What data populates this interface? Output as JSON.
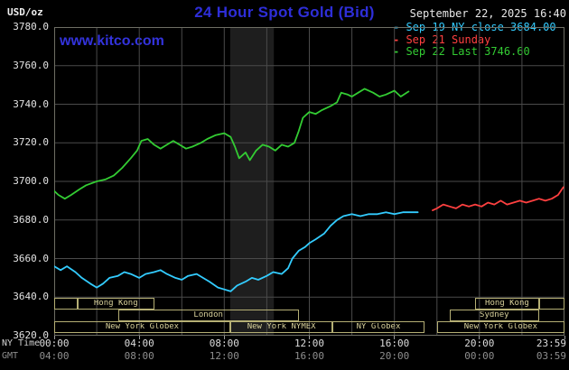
{
  "header": {
    "units_label": "USD/oz",
    "title": "24 Hour Spot Gold (Bid)",
    "datetime": "September 22, 2025 16:40",
    "watermark": "www.kitco.com"
  },
  "axis": {
    "ny_time_label": "NY Time",
    "gmt_label": "GMT"
  },
  "legend": {
    "position": "top-right",
    "items": [
      {
        "id": "sep19",
        "label": "Sep 19 NY close 3684.00",
        "color": "#33ccff"
      },
      {
        "id": "sep21",
        "label": "Sep 21 Sunday",
        "color": "#ff4040"
      },
      {
        "id": "sep22",
        "label": "Sep 22 Last 3746.60",
        "color": "#33cc33"
      }
    ]
  },
  "colors": {
    "background": "#000000",
    "title_blue": "#2e2ed8",
    "watermark_blue": "#3333dd",
    "date_text": "#e8e8e8",
    "session_box_border": "#b5af74",
    "session_label": "#d8d19b"
  },
  "chart_data": {
    "type": "line",
    "title": "24 Hour Spot Gold (Bid)",
    "xlabel": "Time (NY Time / GMT)",
    "ylabel": "USD/oz",
    "ylim": [
      3620,
      3780
    ],
    "xlim_hours": [
      0,
      24
    ],
    "grid": {
      "on": true,
      "x_step_hours": 2,
      "y_step": 20,
      "color": "#4a4a4a",
      "border_color": "#6e6e64"
    },
    "shaded_band": {
      "start_hour": 8.28,
      "end_hour": 10.33,
      "color": "#1e1e1e"
    },
    "y_ticks": [
      {
        "value": 3780,
        "label": "3780.0"
      },
      {
        "value": 3760,
        "label": "3760.0"
      },
      {
        "value": 3740,
        "label": "3740.0"
      },
      {
        "value": 3720,
        "label": "3720.0"
      },
      {
        "value": 3700,
        "label": "3700.0"
      },
      {
        "value": 3680,
        "label": "3680.0"
      },
      {
        "value": 3660,
        "label": "3660.0"
      },
      {
        "value": 3640,
        "label": "3640.0"
      },
      {
        "value": 3620,
        "label": "3620.0"
      }
    ],
    "x_ticks": [
      {
        "hour": 0,
        "ny": "00:00",
        "gmt": "04:00"
      },
      {
        "hour": 4,
        "ny": "04:00",
        "gmt": "08:00"
      },
      {
        "hour": 8,
        "ny": "08:00",
        "gmt": "12:00"
      },
      {
        "hour": 12,
        "ny": "12:00",
        "gmt": "16:00"
      },
      {
        "hour": 16,
        "ny": "16:00",
        "gmt": "20:00"
      },
      {
        "hour": 20,
        "ny": "20:00",
        "gmt": "00:00"
      },
      {
        "hour": 24,
        "ny": "23:59",
        "gmt": "03:59"
      }
    ],
    "series": [
      {
        "id": "sep19",
        "name": "Sep 19 NY close",
        "color": "#33ccff",
        "close": 3684.0,
        "points": [
          [
            0,
            3656
          ],
          [
            0.3,
            3654
          ],
          [
            0.6,
            3656
          ],
          [
            1,
            3653
          ],
          [
            1.3,
            3650
          ],
          [
            1.7,
            3647
          ],
          [
            2,
            3645
          ],
          [
            2.3,
            3647
          ],
          [
            2.6,
            3650
          ],
          [
            3,
            3651
          ],
          [
            3.3,
            3653
          ],
          [
            3.6,
            3652
          ],
          [
            4,
            3650
          ],
          [
            4.3,
            3652
          ],
          [
            4.7,
            3653
          ],
          [
            5,
            3654
          ],
          [
            5.3,
            3652
          ],
          [
            5.7,
            3650
          ],
          [
            6,
            3649
          ],
          [
            6.3,
            3651
          ],
          [
            6.7,
            3652
          ],
          [
            7,
            3650
          ],
          [
            7.3,
            3648
          ],
          [
            7.7,
            3645
          ],
          [
            8,
            3644
          ],
          [
            8.3,
            3643
          ],
          [
            8.6,
            3646
          ],
          [
            9,
            3648
          ],
          [
            9.3,
            3650
          ],
          [
            9.6,
            3649
          ],
          [
            10,
            3651
          ],
          [
            10.3,
            3653
          ],
          [
            10.7,
            3652
          ],
          [
            11,
            3655
          ],
          [
            11.2,
            3660
          ],
          [
            11.5,
            3664
          ],
          [
            11.8,
            3666
          ],
          [
            12,
            3668
          ],
          [
            12.3,
            3670
          ],
          [
            12.7,
            3673
          ],
          [
            13,
            3677
          ],
          [
            13.3,
            3680
          ],
          [
            13.6,
            3682
          ],
          [
            14,
            3683
          ],
          [
            14.4,
            3682
          ],
          [
            14.8,
            3683
          ],
          [
            15.2,
            3683
          ],
          [
            15.6,
            3684
          ],
          [
            16,
            3683
          ],
          [
            16.4,
            3684
          ],
          [
            16.8,
            3684
          ],
          [
            17.1,
            3684
          ]
        ]
      },
      {
        "id": "sep21",
        "name": "Sep 21 Sunday",
        "color": "#ff4040",
        "points": [
          [
            17.8,
            3685
          ],
          [
            18,
            3686
          ],
          [
            18.3,
            3688
          ],
          [
            18.6,
            3687
          ],
          [
            18.9,
            3686
          ],
          [
            19.2,
            3688
          ],
          [
            19.5,
            3687
          ],
          [
            19.8,
            3688
          ],
          [
            20.1,
            3687
          ],
          [
            20.4,
            3689
          ],
          [
            20.7,
            3688
          ],
          [
            21,
            3690
          ],
          [
            21.3,
            3688
          ],
          [
            21.6,
            3689
          ],
          [
            21.9,
            3690
          ],
          [
            22.2,
            3689
          ],
          [
            22.5,
            3690
          ],
          [
            22.8,
            3691
          ],
          [
            23.1,
            3690
          ],
          [
            23.4,
            3691
          ],
          [
            23.7,
            3693
          ],
          [
            23.95,
            3697
          ]
        ]
      },
      {
        "id": "sep22",
        "name": "Sep 22 Last",
        "color": "#33cc33",
        "last": 3746.6,
        "points": [
          [
            0,
            3695
          ],
          [
            0.2,
            3693
          ],
          [
            0.5,
            3691
          ],
          [
            0.8,
            3693
          ],
          [
            1.2,
            3696
          ],
          [
            1.5,
            3698
          ],
          [
            2,
            3700
          ],
          [
            2.4,
            3701
          ],
          [
            2.8,
            3703
          ],
          [
            3.2,
            3707
          ],
          [
            3.6,
            3712
          ],
          [
            3.9,
            3716
          ],
          [
            4.1,
            3721
          ],
          [
            4.4,
            3722
          ],
          [
            4.7,
            3719
          ],
          [
            5,
            3717
          ],
          [
            5.3,
            3719
          ],
          [
            5.6,
            3721
          ],
          [
            5.9,
            3719
          ],
          [
            6.2,
            3717
          ],
          [
            6.5,
            3718
          ],
          [
            6.9,
            3720
          ],
          [
            7.2,
            3722
          ],
          [
            7.6,
            3724
          ],
          [
            8,
            3725
          ],
          [
            8.3,
            3723
          ],
          [
            8.5,
            3718
          ],
          [
            8.7,
            3712
          ],
          [
            9,
            3715
          ],
          [
            9.2,
            3711
          ],
          [
            9.5,
            3716
          ],
          [
            9.8,
            3719
          ],
          [
            10.1,
            3718
          ],
          [
            10.4,
            3716
          ],
          [
            10.7,
            3719
          ],
          [
            11,
            3718
          ],
          [
            11.3,
            3720
          ],
          [
            11.5,
            3726
          ],
          [
            11.7,
            3733
          ],
          [
            12,
            3736
          ],
          [
            12.3,
            3735
          ],
          [
            12.6,
            3737
          ],
          [
            13,
            3739
          ],
          [
            13.3,
            3741
          ],
          [
            13.5,
            3746
          ],
          [
            13.8,
            3745
          ],
          [
            14,
            3744
          ],
          [
            14.3,
            3746
          ],
          [
            14.6,
            3748
          ],
          [
            15,
            3746
          ],
          [
            15.3,
            3744
          ],
          [
            15.6,
            3745
          ],
          [
            16,
            3747
          ],
          [
            16.3,
            3744
          ],
          [
            16.67,
            3746.6
          ]
        ]
      }
    ],
    "sessions": [
      {
        "row": 0,
        "start": 0,
        "end": 1.1,
        "label": ""
      },
      {
        "row": 0,
        "start": 1.1,
        "end": 4.7,
        "label": "Hong Kong"
      },
      {
        "row": 0,
        "start": 19.8,
        "end": 22.8,
        "label": "Hong Kong"
      },
      {
        "row": 0,
        "start": 22.8,
        "end": 24,
        "label": ""
      },
      {
        "row": 1,
        "start": 3.0,
        "end": 11.5,
        "label": "London"
      },
      {
        "row": 1,
        "start": 18.6,
        "end": 22.8,
        "label": "Sydney"
      },
      {
        "row": 2,
        "start": 0,
        "end": 8.28,
        "label": "New York Globex"
      },
      {
        "row": 2,
        "start": 8.28,
        "end": 13.1,
        "label": "New York NYMEX"
      },
      {
        "row": 2,
        "start": 13.1,
        "end": 17.4,
        "label": "NY Globex"
      },
      {
        "row": 2,
        "start": 18.0,
        "end": 24,
        "label": "New York Globex"
      }
    ]
  }
}
